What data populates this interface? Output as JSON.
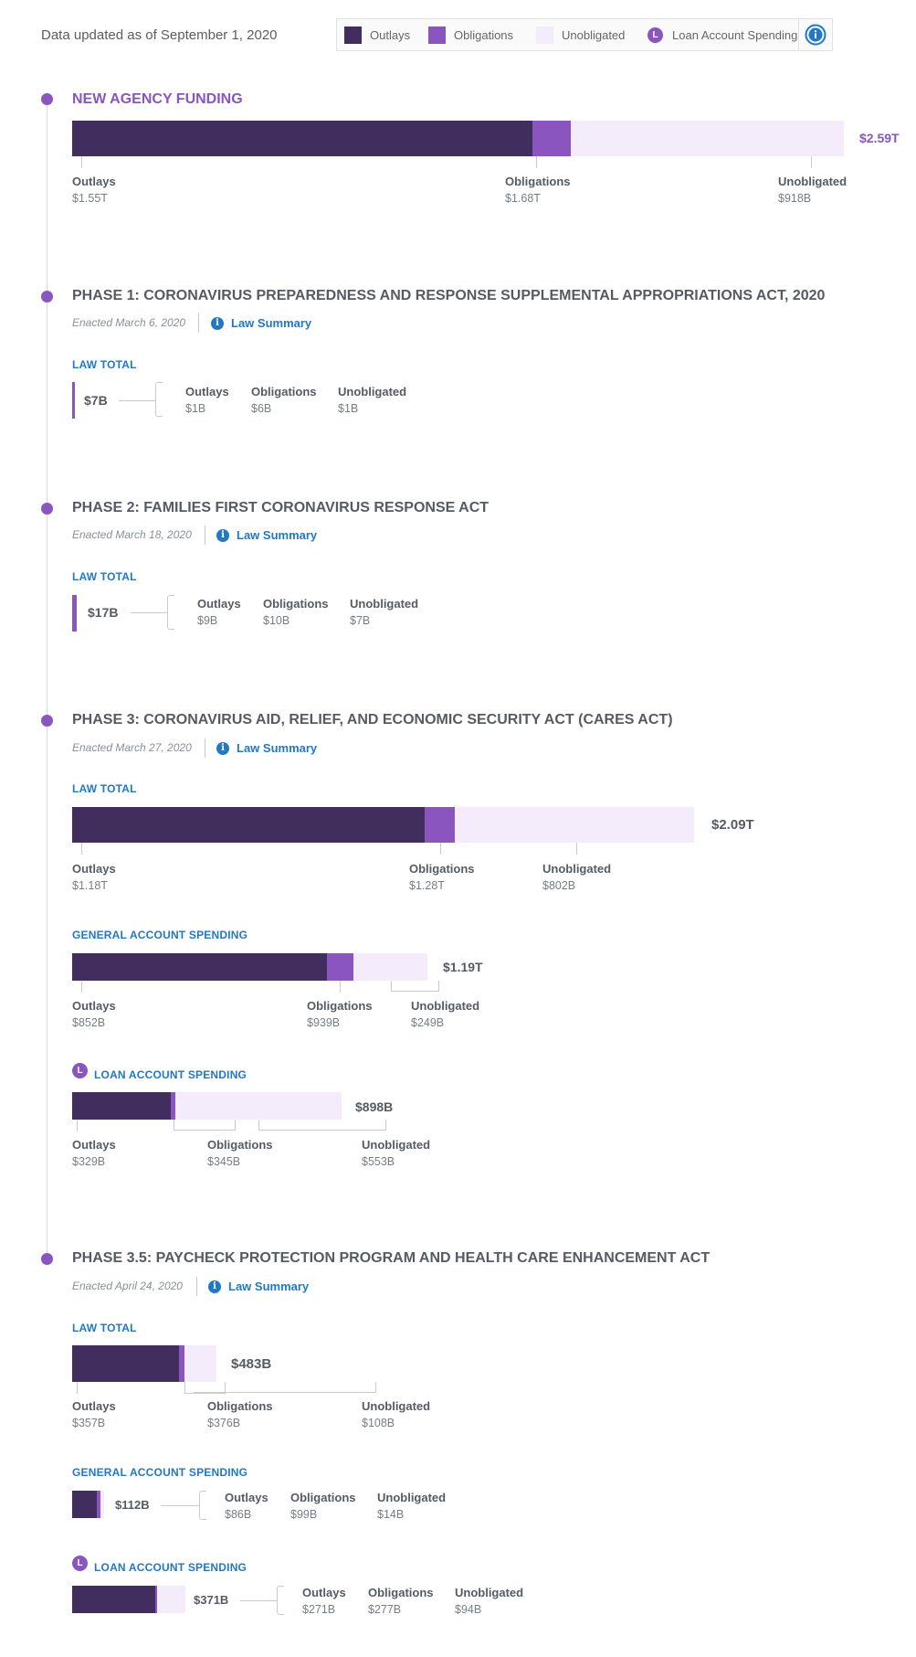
{
  "header": {
    "updated": "Data updated as of September 1, 2020",
    "legend": {
      "outlays": "Outlays",
      "obligations": "Obligations",
      "unobligated": "Unobligated",
      "loan": "Loan Account Spending",
      "loan_badge": "L"
    }
  },
  "colors": {
    "outlays": "#422e5e",
    "obligations": "#8a55bf",
    "unobligated": "#f4ecfb",
    "link": "#2378c3"
  },
  "icons": {
    "info": "info-circle-icon",
    "loan": "loan-badge-icon"
  },
  "labels": {
    "law_total": "LAW TOTAL",
    "general": "GENERAL ACCOUNT SPENDING",
    "loan": "LOAN ACCOUNT SPENDING",
    "law_summary": "Law Summary",
    "outlays": "Outlays",
    "obligations": "Obligations",
    "unobligated": "Unobligated"
  },
  "sections": {
    "new": {
      "title": "NEW AGENCY FUNDING"
    },
    "p1": {
      "title": "PHASE 1: CORONAVIRUS PREPAREDNESS AND RESPONSE SUPPLEMENTAL APPROPRIATIONS ACT, 2020",
      "enacted": "Enacted March 6, 2020"
    },
    "p2": {
      "title": "PHASE 2: FAMILIES FIRST CORONAVIRUS RESPONSE ACT",
      "enacted": "Enacted March 18, 2020"
    },
    "p3": {
      "title": "PHASE 3: CORONAVIRUS AID, RELIEF, AND ECONOMIC SECURITY ACT (CARES ACT)",
      "enacted": "Enacted March 27, 2020"
    },
    "p35": {
      "title": "PHASE 3.5: PAYCHECK PROTECTION PROGRAM AND HEALTH CARE ENHANCEMENT ACT",
      "enacted": "Enacted April 24, 2020"
    }
  },
  "chart_data": [
    {
      "id": "new_agency_funding",
      "type": "bar",
      "total": 2590,
      "total_label": "$2.59T",
      "outlays": 1550,
      "obligations": 1680,
      "unobligated": 918,
      "outlays_label": "$1.55T",
      "obligations_label": "$1.68T",
      "unobligated_label": "$918B",
      "unit": "billions"
    },
    {
      "id": "phase1_total",
      "type": "bar",
      "total": 7,
      "total_label": "$7B",
      "outlays": 1,
      "obligations": 6,
      "unobligated": 1,
      "outlays_label": "$1B",
      "obligations_label": "$6B",
      "unobligated_label": "$1B",
      "unit": "billions"
    },
    {
      "id": "phase2_total",
      "type": "bar",
      "total": 17,
      "total_label": "$17B",
      "outlays": 9,
      "obligations": 10,
      "unobligated": 7,
      "outlays_label": "$9B",
      "obligations_label": "$10B",
      "unobligated_label": "$7B",
      "unit": "billions"
    },
    {
      "id": "phase3_total",
      "type": "bar",
      "total": 2090,
      "total_label": "$2.09T",
      "outlays": 1180,
      "obligations": 1280,
      "unobligated": 802,
      "outlays_label": "$1.18T",
      "obligations_label": "$1.28T",
      "unobligated_label": "$802B",
      "unit": "billions"
    },
    {
      "id": "phase3_general",
      "type": "bar",
      "total": 1190,
      "total_label": "$1.19T",
      "outlays": 852,
      "obligations": 939,
      "unobligated": 249,
      "outlays_label": "$852B",
      "obligations_label": "$939B",
      "unobligated_label": "$249B",
      "unit": "billions"
    },
    {
      "id": "phase3_loan",
      "type": "bar",
      "total": 898,
      "total_label": "$898B",
      "outlays": 329,
      "obligations": 345,
      "unobligated": 553,
      "outlays_label": "$329B",
      "obligations_label": "$345B",
      "unobligated_label": "$553B",
      "unit": "billions"
    },
    {
      "id": "phase35_total",
      "type": "bar",
      "total": 483,
      "total_label": "$483B",
      "outlays": 357,
      "obligations": 376,
      "unobligated": 108,
      "outlays_label": "$357B",
      "obligations_label": "$376B",
      "unobligated_label": "$108B",
      "unit": "billions"
    },
    {
      "id": "phase35_general",
      "type": "bar",
      "total": 112,
      "total_label": "$112B",
      "outlays": 86,
      "obligations": 99,
      "unobligated": 14,
      "outlays_label": "$86B",
      "obligations_label": "$99B",
      "unobligated_label": "$14B",
      "unit": "billions"
    },
    {
      "id": "phase35_loan",
      "type": "bar",
      "total": 371,
      "total_label": "$371B",
      "outlays": 271,
      "obligations": 277,
      "unobligated": 94,
      "outlays_label": "$271B",
      "obligations_label": "$277B",
      "unobligated_label": "$94B",
      "unit": "billions"
    }
  ]
}
